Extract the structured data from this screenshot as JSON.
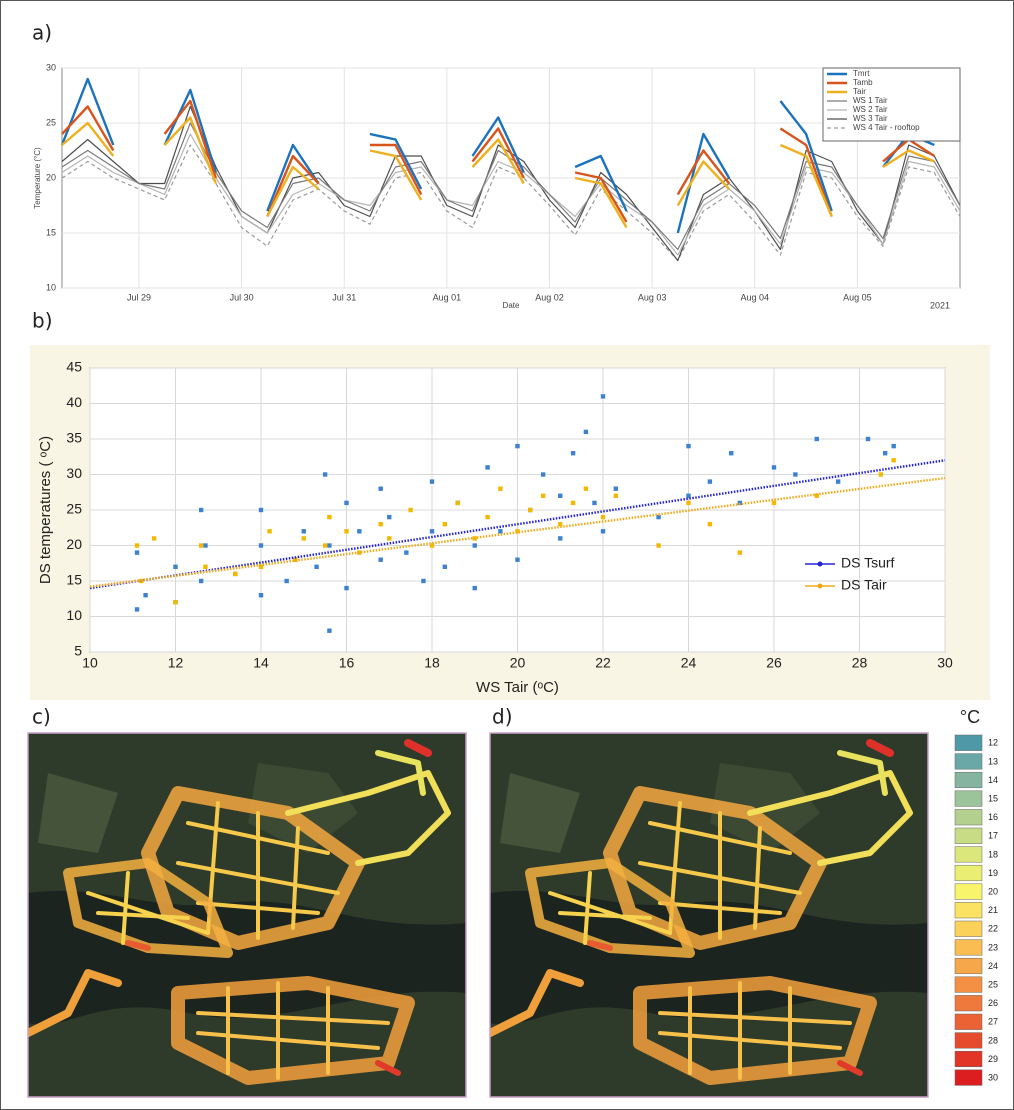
{
  "chart_data": [
    {
      "type": "line",
      "label": "a)",
      "y_label": "Temperature (°C)",
      "x_label": "Date",
      "year": "2021",
      "categories": [
        null,
        null,
        null,
        "Jul 29",
        null,
        null,
        null,
        "Jul 30",
        null,
        null,
        null,
        "Jul 31",
        null,
        null,
        null,
        "Aug 01",
        null,
        null,
        null,
        "Aug 02",
        null,
        null,
        null,
        "Aug 03",
        null,
        null,
        null,
        "Aug 04",
        null,
        null,
        null,
        "Aug 05",
        null,
        null,
        null,
        null
      ],
      "ylim": [
        10,
        30
      ],
      "yticks": [
        10,
        15,
        20,
        25,
        30
      ],
      "grid": true,
      "legend": "top-right",
      "series": [
        {
          "name": "Tmrt",
          "color": "#1b72be",
          "width": 2.4,
          "values": [
            23,
            29,
            23,
            null,
            23,
            28,
            20.5,
            null,
            17,
            23,
            19.5,
            null,
            24,
            23.5,
            19,
            null,
            22,
            25.5,
            20.5,
            null,
            21,
            22,
            17,
            null,
            15,
            24,
            20,
            null,
            27,
            24,
            17,
            null,
            21,
            24,
            23,
            null
          ]
        },
        {
          "name": "Tamb",
          "color": "#d9541a",
          "width": 2.4,
          "values": [
            24,
            26.5,
            22.5,
            null,
            24,
            27,
            20,
            null,
            16.5,
            22,
            19.5,
            null,
            23,
            23,
            18.5,
            null,
            21.5,
            24.5,
            20,
            null,
            20.5,
            20,
            16,
            null,
            18.5,
            22.5,
            19.5,
            null,
            24.5,
            23,
            16.5,
            null,
            21.5,
            23.5,
            22,
            null
          ]
        },
        {
          "name": "Tair",
          "color": "#edb120",
          "width": 2.4,
          "values": [
            23,
            25,
            22,
            null,
            23,
            25.5,
            19.5,
            null,
            16.5,
            21,
            19,
            null,
            22.5,
            22,
            18,
            null,
            21,
            23.5,
            19.5,
            null,
            20,
            19.5,
            15.5,
            null,
            17.5,
            21.5,
            19,
            null,
            23,
            22,
            16.5,
            null,
            21,
            22.5,
            21.5,
            null
          ]
        },
        {
          "name": "WS 1 Tair",
          "color": "#7a7a7a",
          "width": 1.2,
          "values": [
            21,
            22.5,
            21,
            19.5,
            19,
            25,
            20.5,
            17,
            15.5,
            19.5,
            20,
            18,
            17,
            21,
            21.5,
            18,
            17,
            22.5,
            21,
            18.5,
            16,
            20,
            18,
            16,
            13.5,
            18,
            19.5,
            17.5,
            14.5,
            21.5,
            21,
            17.5,
            14.5,
            22,
            21.5,
            17.5
          ]
        },
        {
          "name": "WS 2 Tair",
          "color": "#b4b4b4",
          "width": 1.2,
          "values": [
            20.5,
            22,
            20.5,
            19.5,
            18.5,
            24,
            20,
            16.5,
            15,
            18.5,
            19.5,
            18,
            17.5,
            20.5,
            21,
            18,
            17.5,
            21.5,
            20.5,
            18.5,
            16.5,
            19.5,
            17.5,
            16,
            13,
            17.5,
            19,
            17,
            14,
            21,
            20.5,
            17.5,
            14,
            21.5,
            21,
            17
          ]
        },
        {
          "name": "WS 3 Tair",
          "color": "#4e4e4e",
          "width": 1.2,
          "values": [
            21.5,
            23.5,
            21.5,
            19.5,
            19.5,
            26.5,
            21,
            16.5,
            15,
            20,
            20.5,
            17.5,
            16.5,
            22,
            22,
            17.5,
            16.5,
            23,
            21.5,
            18,
            15.5,
            20.5,
            18.5,
            15.5,
            12.5,
            18.5,
            20,
            17,
            13.5,
            22.5,
            21.5,
            17,
            14,
            23,
            22,
            17.5
          ]
        },
        {
          "name": "WS 4 Tair - rooftop",
          "color": "#9a9a9a",
          "width": 1.2,
          "dash": "4 3",
          "values": [
            20,
            21.5,
            20,
            19,
            18,
            23,
            19.5,
            15.5,
            13.8,
            18,
            19,
            17,
            15.8,
            20,
            20.5,
            17,
            15.5,
            21,
            20,
            17.5,
            14.8,
            19,
            17,
            15,
            12.5,
            17,
            18.5,
            16,
            13,
            20.5,
            20,
            16.5,
            13.8,
            21,
            20.5,
            16.5
          ]
        }
      ]
    },
    {
      "type": "scatter",
      "label": "b)",
      "x_label": "WS Tair (ᵒC)",
      "y_label": "DS temperatures ( ᵒC)",
      "xlim": [
        10,
        30
      ],
      "xticks": [
        10,
        12,
        14,
        16,
        18,
        20,
        22,
        24,
        26,
        28,
        30
      ],
      "ylim": [
        5,
        45
      ],
      "yticks": [
        5,
        10,
        15,
        20,
        25,
        30,
        35,
        40,
        45
      ],
      "grid": true,
      "background": "#f8f5e4",
      "legend": "lower-right",
      "series": [
        {
          "name": "DS Tsurf",
          "color": "#3d82d0",
          "line_color": "#2323d8",
          "x": [
            11.1,
            11.1,
            11.3,
            12,
            12,
            12.6,
            12.6,
            12.7,
            13.4,
            14,
            14,
            14,
            14.6,
            14.8,
            15,
            15.3,
            15.5,
            15.6,
            15.6,
            16,
            16,
            16.3,
            16.8,
            16.8,
            17,
            17.4,
            17.8,
            18,
            18,
            18.3,
            18.6,
            19,
            19,
            19.3,
            19.6,
            20,
            20,
            20.3,
            20.6,
            21,
            21,
            21.3,
            21.6,
            21.8,
            22,
            22,
            22.3,
            23.3,
            24,
            24,
            24.5,
            25,
            25.2,
            26,
            26.5,
            27,
            27.5,
            28.2,
            28.6,
            28.8
          ],
          "values": [
            11,
            19,
            13,
            12,
            17,
            15,
            25,
            20,
            16,
            13,
            25,
            20,
            15,
            18,
            22,
            17,
            30,
            8,
            20,
            14,
            26,
            22,
            28,
            18,
            24,
            19,
            15,
            29,
            22,
            17,
            26,
            20,
            14,
            31,
            22,
            34,
            18,
            25,
            30,
            21,
            27,
            33,
            36,
            26,
            41,
            22,
            28,
            24,
            34,
            27,
            29,
            33,
            26,
            31,
            30,
            35,
            29,
            35,
            33,
            34
          ],
          "fit_x": [
            10,
            30
          ],
          "fit_y": [
            14,
            32
          ]
        },
        {
          "name": "DS Tair",
          "color": "#f5b800",
          "line_color": "#f0a818",
          "x": [
            11.1,
            11.2,
            11.5,
            12,
            12.6,
            12.7,
            13.4,
            14,
            14.2,
            14.8,
            15,
            15.5,
            15.6,
            16,
            16.3,
            16.8,
            17,
            17.5,
            18,
            18.3,
            18.6,
            19,
            19.3,
            19.6,
            20,
            20.3,
            20.6,
            21,
            21.3,
            21.6,
            22,
            22.3,
            23.3,
            24,
            24.5,
            25.2,
            26,
            27,
            28.5,
            28.8
          ],
          "values": [
            20,
            15,
            21,
            12,
            20,
            17,
            16,
            17,
            22,
            18,
            21,
            20,
            24,
            22,
            19,
            23,
            21,
            25,
            20,
            23,
            26,
            21,
            24,
            28,
            22,
            25,
            27,
            23,
            26,
            28,
            24,
            27,
            20,
            26,
            23,
            19,
            26,
            27,
            30,
            32
          ],
          "fit_x": [
            10,
            30
          ],
          "fit_y": [
            14.2,
            29.5
          ]
        }
      ]
    }
  ],
  "maps": {
    "labels": [
      "c)",
      "d)"
    ]
  },
  "colorbar": {
    "title": "°C",
    "ticks": [
      12,
      13,
      14,
      15,
      16,
      17,
      18,
      19,
      20,
      21,
      22,
      23,
      24,
      25,
      26,
      27,
      28,
      29,
      30
    ],
    "colors": [
      "#4f98a8",
      "#6aa8a8",
      "#85b5a0",
      "#9cc49a",
      "#b3d08f",
      "#c8dc86",
      "#dbe67b",
      "#eaef73",
      "#f8f46b",
      "#fbe262",
      "#fbd15a",
      "#f9bd52",
      "#f6a74a",
      "#f39043",
      "#ef793c",
      "#eb6235",
      "#e74b2e",
      "#e23427",
      "#dd1e20"
    ]
  }
}
